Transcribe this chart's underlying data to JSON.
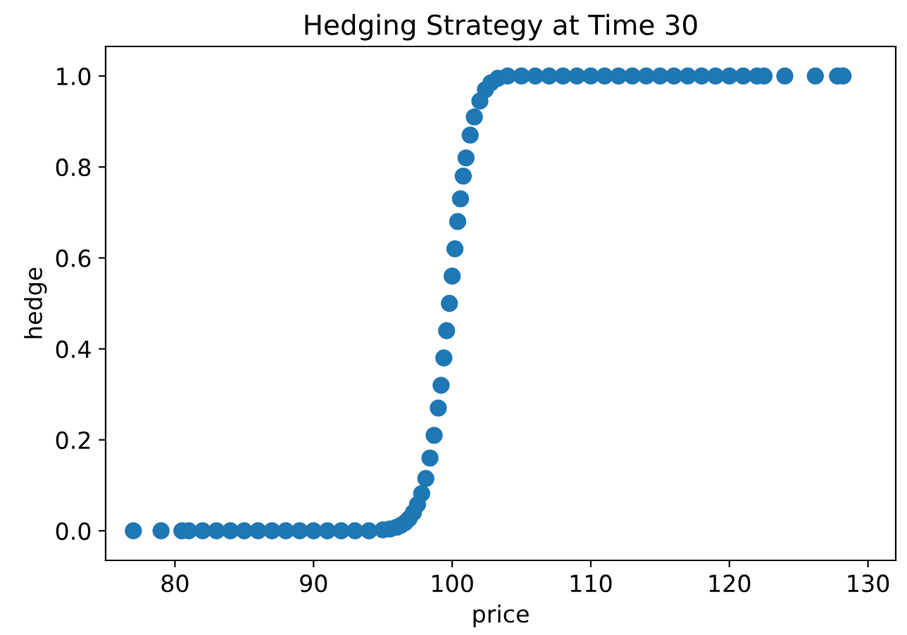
{
  "chart_data": {
    "type": "scatter",
    "title": "Hedging Strategy at Time 30",
    "xlabel": "price",
    "ylabel": "hedge",
    "x": [
      77,
      79,
      80.5,
      81,
      82,
      83,
      84,
      85,
      86,
      87,
      88,
      89,
      90,
      91,
      92,
      93,
      94,
      95,
      95.5,
      96,
      96.3,
      96.6,
      96.9,
      97.2,
      97.5,
      97.8,
      98.1,
      98.4,
      98.7,
      99,
      99.2,
      99.4,
      99.6,
      99.8,
      100,
      100.2,
      100.4,
      100.6,
      100.8,
      101,
      101.3,
      101.6,
      102,
      102.4,
      102.8,
      103.3,
      104,
      105,
      106,
      107,
      108,
      109,
      110,
      111,
      112,
      113,
      114,
      115,
      116,
      117,
      118,
      119,
      120,
      121,
      122,
      122.5,
      124,
      126.2,
      127.8,
      128.2
    ],
    "series": [
      {
        "color": "#1f77b4",
        "values": [
          0,
          0,
          0,
          0,
          0,
          0,
          0,
          0,
          0,
          0,
          0,
          0,
          0,
          0,
          0,
          0,
          0,
          0.002,
          0.004,
          0.008,
          0.012,
          0.018,
          0.027,
          0.04,
          0.058,
          0.082,
          0.115,
          0.16,
          0.21,
          0.27,
          0.32,
          0.38,
          0.44,
          0.5,
          0.56,
          0.62,
          0.68,
          0.73,
          0.78,
          0.82,
          0.87,
          0.91,
          0.945,
          0.97,
          0.985,
          0.995,
          1,
          1,
          1,
          1,
          1,
          1,
          1,
          1,
          1,
          1,
          1,
          1,
          1,
          1,
          1,
          1,
          1,
          1,
          1,
          1,
          1,
          1,
          1,
          1
        ]
      }
    ],
    "xlim": [
      75,
      132
    ],
    "xticks": [
      80,
      90,
      100,
      110,
      120,
      130
    ],
    "ylim": [
      -0.065,
      1.065
    ],
    "yticks": [
      {
        "value": 0,
        "label": "0.0"
      },
      {
        "value": 0.2,
        "label": "0.2"
      },
      {
        "value": 0.4,
        "label": "0.4"
      },
      {
        "value": 0.6,
        "label": "0.6"
      },
      {
        "value": 0.8,
        "label": "0.8"
      },
      {
        "value": 1,
        "label": "1.0"
      }
    ],
    "marker": "circle",
    "grid": false,
    "legend": false
  }
}
